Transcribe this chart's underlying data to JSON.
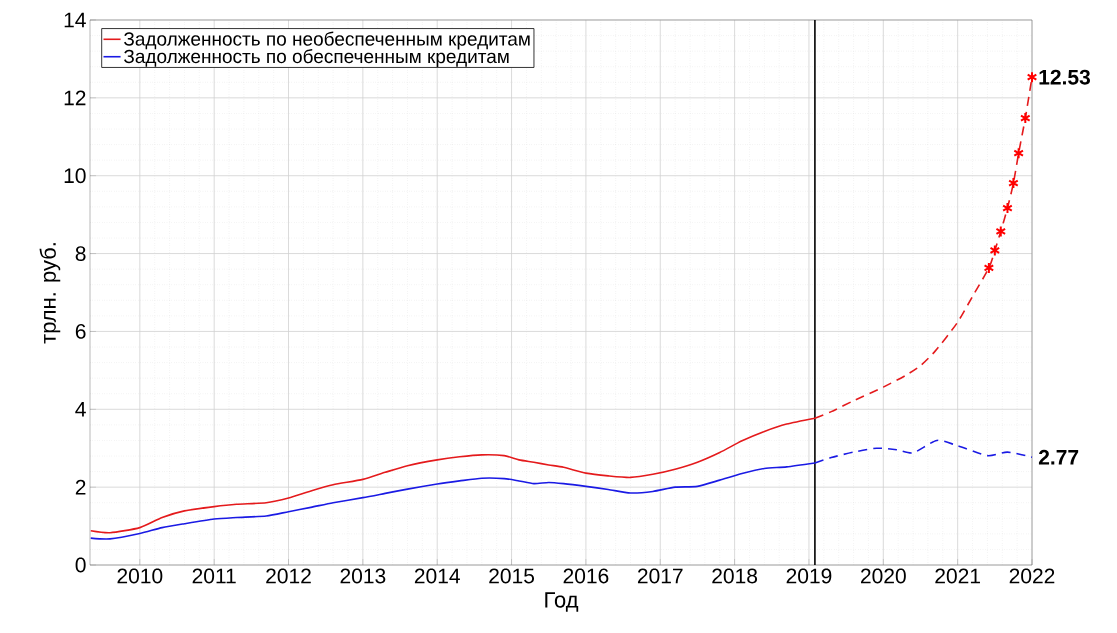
{
  "chart_data": {
    "type": "line",
    "xlabel": "Год",
    "ylabel": "трлн. руб.",
    "xlim": [
      2009.33,
      2022
    ],
    "ylim": [
      0,
      14
    ],
    "xticks": [
      2010,
      2011,
      2012,
      2013,
      2014,
      2015,
      2016,
      2017,
      2018,
      2019,
      2020,
      2021,
      2022
    ],
    "yticks": [
      0,
      2,
      4,
      6,
      8,
      10,
      12,
      14
    ],
    "grid": true,
    "legend": "top left",
    "series": [
      {
        "name": "Задолженность по необеспеченным кредитам",
        "color": "#e41a1c",
        "line_style": "solid",
        "x": [
          2009.34,
          2009.6,
          2010,
          2010.3,
          2010.6,
          2011,
          2011.3,
          2011.7,
          2012,
          2012.3,
          2012.6,
          2013,
          2013.3,
          2013.6,
          2014,
          2014.3,
          2014.6,
          2014.9,
          2015.1,
          2015.3,
          2015.5,
          2015.7,
          2016,
          2016.3,
          2016.6,
          2016.9,
          2017.2,
          2017.5,
          2017.8,
          2018.1,
          2018.4,
          2018.7,
          2019.08
        ],
        "values": [
          0.88,
          0.83,
          0.96,
          1.22,
          1.39,
          1.5,
          1.56,
          1.6,
          1.72,
          1.9,
          2.06,
          2.2,
          2.38,
          2.55,
          2.7,
          2.78,
          2.83,
          2.81,
          2.7,
          2.64,
          2.57,
          2.51,
          2.36,
          2.29,
          2.25,
          2.33,
          2.46,
          2.64,
          2.89,
          3.19,
          3.43,
          3.62,
          3.77
        ]
      },
      {
        "name": "Задолженность по обеспеченным кредитам",
        "color": "#1a1ae4",
        "line_style": "solid",
        "x": [
          2009.34,
          2009.6,
          2010,
          2010.3,
          2010.6,
          2011,
          2011.3,
          2011.7,
          2012,
          2012.3,
          2012.6,
          2013,
          2013.3,
          2013.6,
          2014,
          2014.3,
          2014.6,
          2014.9,
          2015.1,
          2015.3,
          2015.5,
          2015.7,
          2016,
          2016.3,
          2016.6,
          2016.9,
          2017.2,
          2017.5,
          2017.8,
          2018.1,
          2018.4,
          2018.7,
          2019.08
        ],
        "values": [
          0.69,
          0.67,
          0.81,
          0.96,
          1.06,
          1.18,
          1.22,
          1.26,
          1.37,
          1.48,
          1.6,
          1.73,
          1.84,
          1.95,
          2.08,
          2.16,
          2.23,
          2.22,
          2.16,
          2.09,
          2.12,
          2.09,
          2.02,
          1.94,
          1.85,
          1.89,
          2.0,
          2.02,
          2.18,
          2.35,
          2.48,
          2.52,
          2.62
        ]
      },
      {
        "color": "#e41a1c",
        "line_style": "dashed",
        "x": [
          2019.08,
          2019.3,
          2019.6,
          2020,
          2020.3,
          2020.5,
          2020.7,
          2020.99,
          2021.2,
          2021.42,
          2021.5,
          2021.58,
          2021.67,
          2021.75,
          2021.82,
          2021.91,
          2022
        ],
        "values": [
          3.77,
          3.94,
          4.22,
          4.57,
          4.87,
          5.12,
          5.5,
          6.21,
          6.9,
          7.63,
          8.08,
          8.57,
          9.17,
          9.81,
          10.58,
          11.48,
          12.53
        ]
      },
      {
        "color": "#ff0000",
        "type": "scatter",
        "marker": "cross",
        "x": [
          2021.42,
          2021.5,
          2021.58,
          2021.67,
          2021.75,
          2021.82,
          2021.91,
          2022
        ],
        "values": [
          7.63,
          8.08,
          8.57,
          9.17,
          9.81,
          10.58,
          11.48,
          12.53
        ]
      },
      {
        "color": "#1a1ae4",
        "line_style": "dashed",
        "x": [
          2019.08,
          2019.3,
          2019.6,
          2019.91,
          2020.18,
          2020.4,
          2020.72,
          2020.99,
          2021.4,
          2021.67,
          2022
        ],
        "values": [
          2.62,
          2.76,
          2.9,
          3.0,
          2.96,
          2.88,
          3.2,
          3.07,
          2.81,
          2.9,
          2.77
        ]
      }
    ],
    "ref_lines": [
      {
        "axis": "x",
        "value": 2019.08,
        "color": "#000000"
      }
    ],
    "annotations": [
      {
        "text": "**12.53**",
        "x": 2022,
        "y": 12.53
      },
      {
        "text": "**2.77**",
        "x": 2022,
        "y": 2.77
      }
    ]
  }
}
